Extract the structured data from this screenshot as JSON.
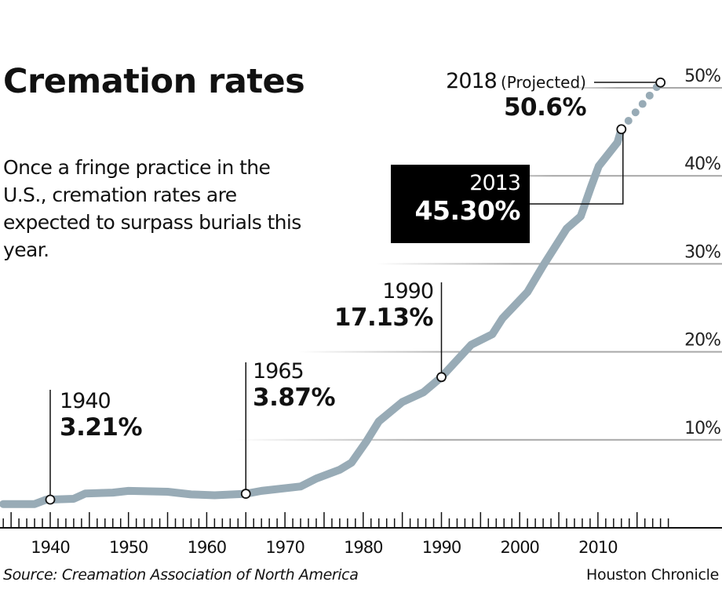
{
  "title": "Cremation rates",
  "subtitle": "Once a fringe practice in the U.S., cremation rates are expected to surpass burials this year.",
  "source": "Source: Creamation Association of North America",
  "credit": "Houston Chronicle",
  "colors": {
    "line": "#98abb6",
    "grid": "#a8a8a8",
    "annotation_box": "#000000"
  },
  "chart_data": {
    "type": "line",
    "title": "Cremation rates",
    "xlim": [
      1934,
      2020
    ],
    "ylim": [
      0,
      52
    ],
    "x_ticks": [
      1940,
      1950,
      1960,
      1970,
      1980,
      1990,
      2000,
      2010
    ],
    "y_ticks": [
      10,
      20,
      30,
      40,
      50
    ],
    "y_tick_labels": [
      "10%",
      "20%",
      "30%",
      "40%",
      "50%"
    ],
    "grid": "horizontal",
    "series": [
      {
        "style": "solid",
        "points": [
          [
            1934,
            2.7
          ],
          [
            1938,
            2.7
          ],
          [
            1939.5,
            3.2
          ],
          [
            1940,
            3.21
          ],
          [
            1943,
            3.3
          ],
          [
            1944.5,
            3.9
          ],
          [
            1948,
            4.0
          ],
          [
            1950,
            4.2
          ],
          [
            1955,
            4.1
          ],
          [
            1958,
            3.8
          ],
          [
            1961,
            3.7
          ],
          [
            1965,
            3.87
          ],
          [
            1967,
            4.2
          ],
          [
            1972,
            4.7
          ],
          [
            1974,
            5.6
          ],
          [
            1977,
            6.6
          ],
          [
            1978.5,
            7.4
          ],
          [
            1980.4,
            9.8
          ],
          [
            1982,
            12.1
          ],
          [
            1985,
            14.3
          ],
          [
            1987.7,
            15.4
          ],
          [
            1990,
            17.13
          ],
          [
            1993.8,
            20.8
          ],
          [
            1996.5,
            22
          ],
          [
            1997.8,
            23.8
          ],
          [
            2001,
            26.8
          ],
          [
            2003,
            29.8
          ],
          [
            2006,
            34
          ],
          [
            2007.8,
            35.4
          ],
          [
            2009.1,
            38.7
          ],
          [
            2010.1,
            41.1
          ],
          [
            2012.5,
            43.8
          ],
          [
            2013,
            45.3
          ]
        ]
      },
      {
        "style": "dotted",
        "label": "Projected",
        "points": [
          [
            2013,
            45.3
          ],
          [
            2018,
            50.6
          ]
        ]
      }
    ],
    "annotations": [
      {
        "year": "1940",
        "value": "3.21%",
        "x": 1940,
        "y": 3.21
      },
      {
        "year": "1965",
        "value": "3.87%",
        "x": 1965,
        "y": 3.87
      },
      {
        "year": "1990",
        "value": "17.13%",
        "x": 1990,
        "y": 17.13
      },
      {
        "year": "2013",
        "value": "45.30%",
        "x": 2013,
        "y": 45.3
      },
      {
        "year": "2018",
        "note": "(Projected)",
        "value": "50.6%",
        "x": 2018,
        "y": 50.6
      }
    ]
  }
}
